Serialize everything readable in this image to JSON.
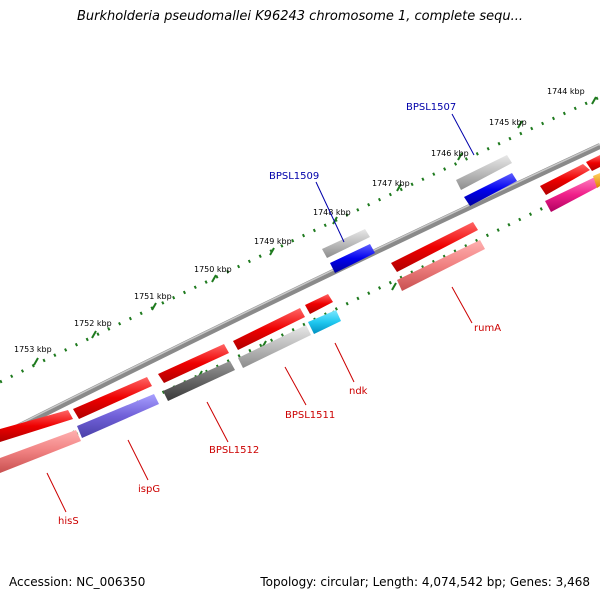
{
  "title": "Burkholderia pseudomallei K96243 chromosome 1, complete sequ...",
  "footer": {
    "accession": "Accession: NC_006350",
    "summary": "Topology: circular; Length: 4,074,542 bp; Genes: 3,468"
  },
  "colors": {
    "backbone": "#8a8a8a",
    "tick": "#1e7a1e",
    "label_red": "#cc0000",
    "label_blue": "#0000aa"
  },
  "kbp_labels": [
    "1744 kbp",
    "1745 kbp",
    "1746 kbp",
    "1747 kbp",
    "1748 kbp",
    "1749 kbp",
    "1750 kbp",
    "1751 kbp",
    "1752 kbp",
    "1753 kbp"
  ],
  "gene_labels": [
    {
      "name": "BPSL1507",
      "color": "blue"
    },
    {
      "name": "BPSL1509",
      "color": "blue"
    },
    {
      "name": "rumA",
      "color": "red"
    },
    {
      "name": "ndk",
      "color": "red"
    },
    {
      "name": "BPSL1511",
      "color": "red"
    },
    {
      "name": "BPSL1512",
      "color": "red"
    },
    {
      "name": "ispG",
      "color": "red"
    },
    {
      "name": "hisS",
      "color": "red"
    }
  ]
}
